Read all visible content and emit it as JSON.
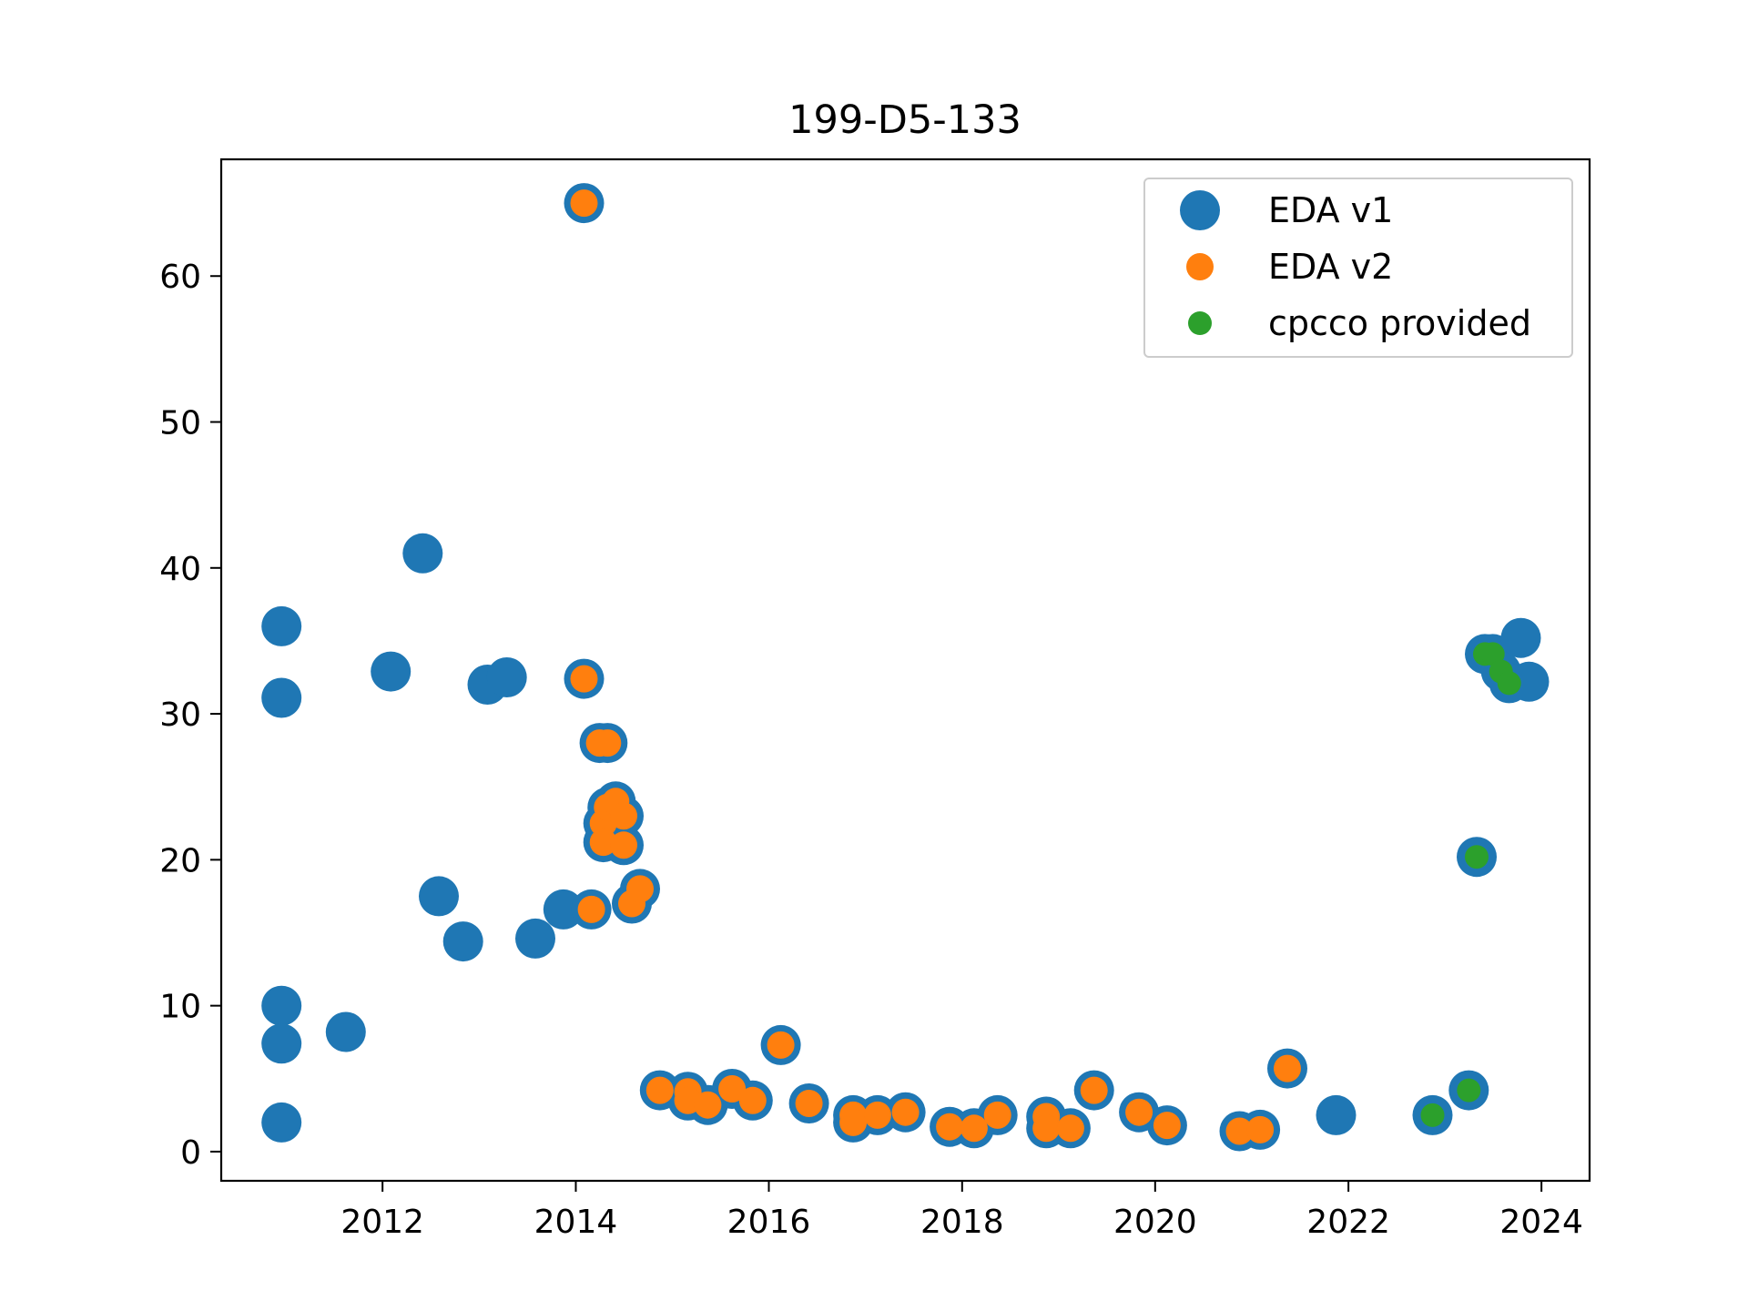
{
  "chart_data": {
    "type": "scatter",
    "title": "199-D5-133",
    "xlabel": "",
    "ylabel": "",
    "xlim": [
      "2010-05-01",
      "2024-07-01"
    ],
    "ylim": [
      -2,
      68
    ],
    "xticks": [
      "2012-01-01",
      "2014-01-01",
      "2016-01-01",
      "2018-01-01",
      "2020-01-01",
      "2022-01-01",
      "2024-01-01"
    ],
    "xtick_labels": [
      "2012",
      "2014",
      "2016",
      "2018",
      "2020",
      "2022",
      "2024"
    ],
    "yticks": [
      0,
      10,
      20,
      30,
      40,
      50,
      60
    ],
    "ytick_labels": [
      "0",
      "10",
      "20",
      "30",
      "40",
      "50",
      "60"
    ],
    "grid": false,
    "legend_position": "top-right",
    "series": [
      {
        "name": "EDA v1",
        "color": "#1f77b4",
        "marker": "large-circle",
        "points": [
          [
            "2010-12-15",
            36
          ],
          [
            "2010-12-15",
            31.1
          ],
          [
            "2010-12-15",
            10
          ],
          [
            "2010-12-15",
            7.4
          ],
          [
            "2010-12-15",
            2
          ],
          [
            "2011-08-15",
            8.2
          ],
          [
            "2012-02-01",
            32.9
          ],
          [
            "2012-06-01",
            41
          ],
          [
            "2012-08-01",
            17.5
          ],
          [
            "2012-11-01",
            14.4
          ],
          [
            "2013-02-01",
            32
          ],
          [
            "2013-04-15",
            32.5
          ],
          [
            "2013-08-01",
            14.6
          ],
          [
            "2013-11-15",
            16.6
          ],
          [
            "2014-02-01",
            65
          ],
          [
            "2014-02-01",
            32.4
          ],
          [
            "2014-03-01",
            16.6
          ],
          [
            "2014-04-01",
            28
          ],
          [
            "2014-05-01",
            28
          ],
          [
            "2014-04-15",
            22.5
          ],
          [
            "2014-05-01",
            23.6
          ],
          [
            "2014-04-15",
            21.2
          ],
          [
            "2014-06-01",
            24
          ],
          [
            "2014-07-01",
            23
          ],
          [
            "2014-07-01",
            21
          ],
          [
            "2014-08-01",
            17
          ],
          [
            "2014-09-01",
            18
          ],
          [
            "2014-11-15",
            4.2
          ],
          [
            "2015-03-01",
            4.1
          ],
          [
            "2015-03-01",
            3.5
          ],
          [
            "2015-05-15",
            3.2
          ],
          [
            "2015-08-15",
            4.3
          ],
          [
            "2015-11-01",
            3.5
          ],
          [
            "2016-02-15",
            7.3
          ],
          [
            "2016-06-01",
            3.3
          ],
          [
            "2016-11-15",
            2.5
          ],
          [
            "2016-11-15",
            2
          ],
          [
            "2017-02-15",
            2.5
          ],
          [
            "2017-06-01",
            2.7
          ],
          [
            "2017-11-15",
            1.7
          ],
          [
            "2018-02-15",
            1.6
          ],
          [
            "2018-05-15",
            2.5
          ],
          [
            "2018-11-15",
            2.4
          ],
          [
            "2018-11-15",
            1.6
          ],
          [
            "2019-02-15",
            1.6
          ],
          [
            "2019-05-15",
            4.2
          ],
          [
            "2019-11-01",
            2.7
          ],
          [
            "2020-02-15",
            1.8
          ],
          [
            "2020-11-15",
            1.4
          ],
          [
            "2021-02-01",
            1.5
          ],
          [
            "2021-05-15",
            5.7
          ],
          [
            "2021-11-15",
            2.5
          ],
          [
            "2022-11-15",
            2.5
          ],
          [
            "2023-04-01",
            4.2
          ],
          [
            "2023-05-01",
            20.2
          ],
          [
            "2023-06-01",
            34.1
          ],
          [
            "2023-07-01",
            34.1
          ],
          [
            "2023-08-01",
            32.9
          ],
          [
            "2023-09-01",
            32.1
          ],
          [
            "2023-10-15",
            35.2
          ],
          [
            "2023-11-15",
            32.2
          ]
        ]
      },
      {
        "name": "EDA v2",
        "color": "#ff7f0e",
        "marker": "circle",
        "points": [
          [
            "2014-02-01",
            65
          ],
          [
            "2014-02-01",
            32.4
          ],
          [
            "2014-03-01",
            16.6
          ],
          [
            "2014-04-01",
            28
          ],
          [
            "2014-05-01",
            28
          ],
          [
            "2014-04-15",
            22.5
          ],
          [
            "2014-05-01",
            23.6
          ],
          [
            "2014-04-15",
            21.2
          ],
          [
            "2014-06-01",
            24
          ],
          [
            "2014-07-01",
            23
          ],
          [
            "2014-07-01",
            21
          ],
          [
            "2014-08-01",
            17
          ],
          [
            "2014-09-01",
            18
          ],
          [
            "2014-11-15",
            4.2
          ],
          [
            "2015-03-01",
            4.1
          ],
          [
            "2015-03-01",
            3.5
          ],
          [
            "2015-05-15",
            3.2
          ],
          [
            "2015-08-15",
            4.3
          ],
          [
            "2015-11-01",
            3.5
          ],
          [
            "2016-02-15",
            7.3
          ],
          [
            "2016-06-01",
            3.3
          ],
          [
            "2016-11-15",
            2.5
          ],
          [
            "2016-11-15",
            2
          ],
          [
            "2017-02-15",
            2.5
          ],
          [
            "2017-06-01",
            2.7
          ],
          [
            "2017-11-15",
            1.7
          ],
          [
            "2018-02-15",
            1.6
          ],
          [
            "2018-05-15",
            2.5
          ],
          [
            "2018-11-15",
            2.4
          ],
          [
            "2018-11-15",
            1.6
          ],
          [
            "2019-02-15",
            1.6
          ],
          [
            "2019-05-15",
            4.2
          ],
          [
            "2019-11-01",
            2.7
          ],
          [
            "2020-02-15",
            1.8
          ],
          [
            "2020-11-15",
            1.4
          ],
          [
            "2021-02-01",
            1.5
          ],
          [
            "2021-05-15",
            5.7
          ]
        ]
      },
      {
        "name": "cpcco provided",
        "color": "#2ca02c",
        "marker": "small-circle",
        "points": [
          [
            "2022-11-15",
            2.5
          ],
          [
            "2023-04-01",
            4.2
          ],
          [
            "2023-05-01",
            20.2
          ],
          [
            "2023-06-01",
            34.1
          ],
          [
            "2023-07-01",
            34.1
          ],
          [
            "2023-08-01",
            32.9
          ],
          [
            "2023-09-01",
            32.1
          ]
        ]
      }
    ]
  }
}
